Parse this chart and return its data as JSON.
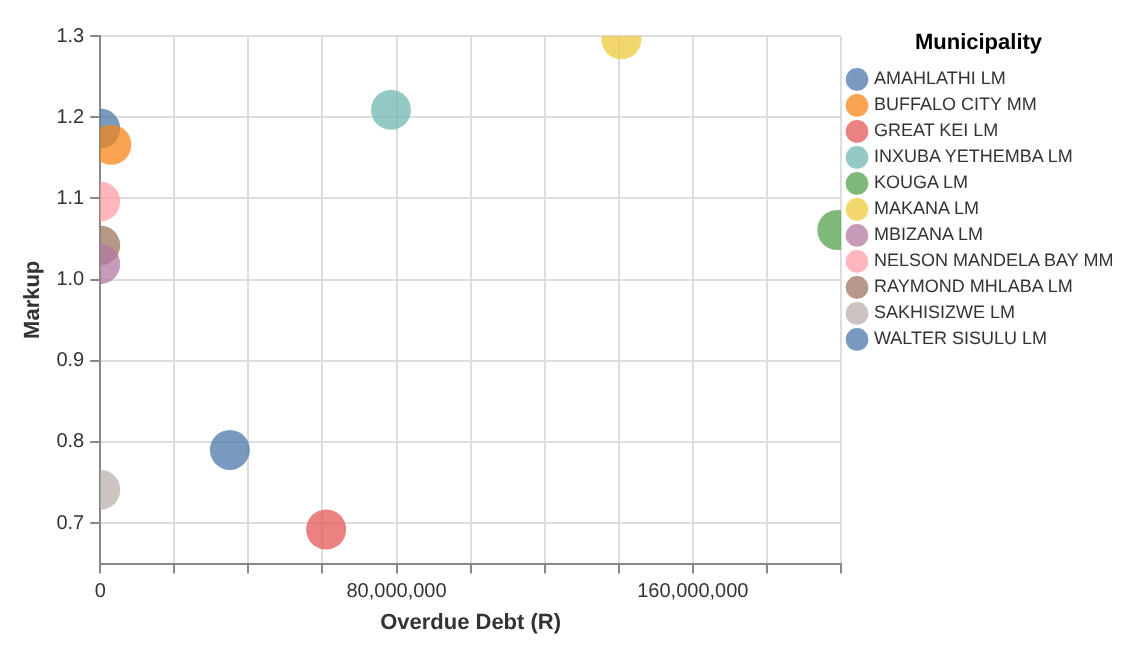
{
  "chart_data": {
    "type": "scatter",
    "xlabel": "Overdue Debt (R)",
    "ylabel": "Markup",
    "legend_title": "Municipality",
    "legend": "right",
    "grid": true,
    "marker": "circle",
    "xlim": [
      0,
      200000000
    ],
    "ylim": [
      0.65,
      1.3
    ],
    "xticks": [
      0,
      {
        "value": 20000000,
        "label": null
      },
      {
        "value": 40000000,
        "label": null
      },
      {
        "value": 60000000,
        "label": null
      },
      {
        "value": 80000000,
        "label": "80,000,000"
      },
      {
        "value": 100000000,
        "label": null
      },
      {
        "value": 120000000,
        "label": null
      },
      {
        "value": 140000000,
        "label": null
      },
      {
        "value": 160000000,
        "label": "160,000,000"
      },
      {
        "value": 180000000,
        "label": null
      },
      {
        "value": 200000000,
        "label": null
      }
    ],
    "yticks": [
      {
        "value": 0.7,
        "label": "0.7"
      },
      {
        "value": 0.8,
        "label": "0.8"
      },
      {
        "value": 0.9,
        "label": "0.9"
      },
      {
        "value": 1.0,
        "label": "1.0"
      },
      {
        "value": 1.1,
        "label": "1.1"
      },
      {
        "value": 1.2,
        "label": "1.2"
      },
      {
        "value": 1.3,
        "label": "1.3"
      }
    ],
    "series": [
      {
        "name": "AMAHLATHI LM",
        "color": "#4c78a8",
        "x": [
          35000000
        ],
        "values": [
          0.79
        ]
      },
      {
        "name": "BUFFALO CITY MM",
        "color": "#f58518",
        "x": [
          3000000
        ],
        "values": [
          1.166
        ]
      },
      {
        "name": "GREAT KEI LM",
        "color": "#e45756",
        "x": [
          61000000
        ],
        "values": [
          0.692
        ]
      },
      {
        "name": "INXUBA YETHEMBA LM",
        "color": "#72b7b2",
        "x": [
          78500000
        ],
        "values": [
          1.209
        ]
      },
      {
        "name": "KOUGA LM",
        "color": "#54a24b",
        "x": [
          199000000
        ],
        "values": [
          1.061
        ]
      },
      {
        "name": "MAKANA LM",
        "color": "#eeca3b",
        "x": [
          140700000
        ],
        "values": [
          1.296
        ]
      },
      {
        "name": "MBIZANA LM",
        "color": "#b279a2",
        "x": [
          0
        ],
        "values": [
          1.019
        ]
      },
      {
        "name": "NELSON MANDELA BAY MM",
        "color": "#ff9da6",
        "x": [
          0
        ],
        "values": [
          1.096
        ]
      },
      {
        "name": "RAYMOND MHLABA LM",
        "color": "#9d755d",
        "x": [
          0
        ],
        "values": [
          1.042
        ]
      },
      {
        "name": "SAKHISIZWE LM",
        "color": "#bab0ac",
        "x": [
          0
        ],
        "values": [
          0.741
        ]
      },
      {
        "name": "WALTER SISULU LM",
        "color": "#4c78a8",
        "x": [
          0
        ],
        "values": [
          1.186
        ]
      }
    ]
  }
}
